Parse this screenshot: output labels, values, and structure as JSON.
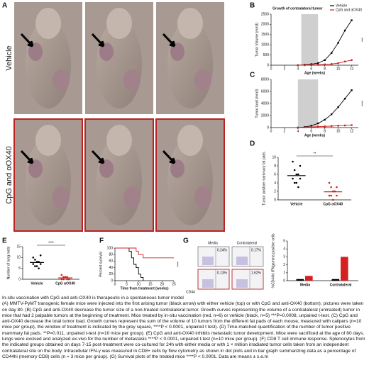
{
  "figure": {
    "panel_labels": [
      "A",
      "B",
      "C",
      "D",
      "E",
      "F",
      "G"
    ],
    "row_labels": [
      "Vehicle",
      "CpG and αOX40"
    ]
  },
  "flow": {
    "columns": [
      "Media",
      "Contralateral"
    ],
    "percentages": [
      "0.24%",
      "0.17%",
      "0.13%",
      "1.62%"
    ],
    "axis_label": "CD44"
  },
  "chart_data": [
    {
      "type": "line",
      "title": "Growth of contralateral tumor",
      "y_label": "Tumor Volume (mm3)",
      "x_label": "Age (weeks)",
      "x": [
        4,
        5,
        6,
        7,
        8,
        9,
        10,
        11,
        12
      ],
      "xlim": [
        0,
        13
      ],
      "xticks": [
        0,
        2,
        4,
        6,
        8,
        10,
        12
      ],
      "ylim": [
        0,
        2500
      ],
      "yticks": [
        0,
        500,
        1000,
        1500,
        2000,
        2500
      ],
      "shade": [
        4.5,
        7
      ],
      "annotation": "***",
      "legend": "upper right",
      "series": [
        {
          "name": "Vehicle",
          "color": "#000000",
          "values": [
            0,
            20,
            50,
            100,
            250,
            600,
            1100,
            1700,
            2200
          ]
        },
        {
          "name": "CpG and αOX40",
          "color": "#d62020",
          "values": [
            0,
            0,
            10,
            20,
            40,
            60,
            100,
            180,
            250
          ]
        }
      ]
    },
    {
      "type": "line",
      "y_label": "Tumor load (mm3)",
      "x_label": "Age (weeks)",
      "x": [
        4,
        5,
        6,
        7,
        8,
        9,
        10,
        11,
        12
      ],
      "xlim": [
        0,
        13
      ],
      "xticks": [
        0,
        2,
        4,
        6,
        8,
        10,
        12
      ],
      "ylim": [
        0,
        8000
      ],
      "yticks": [
        0,
        2000,
        4000,
        6000,
        8000
      ],
      "shade": [
        4,
        7
      ],
      "annotation": "****",
      "series": [
        {
          "color": "#000000",
          "values": [
            0,
            100,
            300,
            700,
            1300,
            2200,
            3400,
            4800,
            6200
          ]
        },
        {
          "color": "#d62020",
          "values": [
            0,
            50,
            100,
            150,
            200,
            250,
            300,
            350,
            400
          ]
        }
      ]
    },
    {
      "type": "strip",
      "y_label": "Tumor positive mammary fat pads",
      "categories": [
        "Vehicle",
        "CpG αOX40"
      ],
      "ylim": [
        0,
        10
      ],
      "yticks": [
        0,
        2,
        4,
        6,
        8,
        10
      ],
      "annotation": "**",
      "colors": [
        "#000000",
        "#d62020"
      ],
      "points": [
        [
          9,
          7,
          6,
          6,
          5,
          5,
          4,
          4,
          3,
          8
        ],
        [
          4,
          3,
          2,
          2,
          1,
          1,
          1,
          0,
          2,
          3
        ]
      ],
      "means": [
        5.7,
        1.9
      ]
    },
    {
      "type": "strip",
      "y_label": "Number of lung mets",
      "categories": [
        "Vehicle",
        "CpG αOX40"
      ],
      "ylim": [
        0,
        15
      ],
      "yticks": [
        0,
        5,
        10,
        15
      ],
      "annotation": "****",
      "colors": [
        "#000000",
        "#d62020"
      ],
      "points": [
        [
          10,
          9,
          8,
          8,
          7,
          7,
          6,
          6,
          5,
          11
        ],
        [
          2,
          1,
          1,
          1,
          0,
          0,
          0,
          1,
          0,
          0
        ]
      ],
      "means": [
        7.7,
        0.6
      ]
    },
    {
      "type": "step",
      "y_label": "Percent survival",
      "x_label": "Time from treatment (weeks)",
      "xlim": [
        0,
        25
      ],
      "xticks": [
        0,
        5,
        10,
        15,
        20,
        25
      ],
      "ylim": [
        0,
        100
      ],
      "yticks": [
        0,
        20,
        40,
        60,
        80,
        100
      ],
      "annotation": "****",
      "series": [
        {
          "color": "#000000",
          "x": [
            0,
            6,
            7,
            8,
            9,
            10,
            11,
            12
          ],
          "values": [
            100,
            90,
            70,
            50,
            40,
            20,
            10,
            0
          ]
        },
        {
          "color": "#d62020",
          "x": [
            0,
            9,
            10,
            12,
            25
          ],
          "values": [
            100,
            90,
            80,
            70,
            70
          ]
        }
      ]
    },
    {
      "type": "bar",
      "y_label": "%CD44hi IFNgamma positive cells",
      "categories": [
        "Media",
        "Contralateral"
      ],
      "ylim": [
        0,
        5
      ],
      "yticks": [
        0,
        1,
        2,
        3,
        4,
        5
      ],
      "series": [
        {
          "color": "#000000",
          "values": [
            0.2,
            0.2
          ]
        },
        {
          "color": "#d62020",
          "values": [
            0.6,
            3.0
          ]
        }
      ]
    }
  ],
  "caption": {
    "title": "In-situ vaccination with CpG and anti-OX40 is therapeutic in a spontaneous tumor model",
    "text": "(A) MMTV-PyMT transgenic female mice were injected into the first arising tumor (black arrow) with either vehicle  (top) or with CpG and anti-OX40 (bottom); pictures were taken on day 80. (B) CpG and anti-OX40 decrease the tumor size of a non-treated contralateral tumor. Growth curves representing the volume of a contralateral (untreated) tumor in mice that had 2 palpable tumors at the beginning of treatment. Mice treated by in-situ vaccination (red, n=6) or vehicle (black, n=5) ***P=0.0008, unpaired t-test. (C) CpG and anti-OX40 decrease the total tumor load. Growth curves represent the sum of the volume of 10 tumors from the different fat pads of each mouse, measured with calipers (n=10 mice per group), the window of treatment is indicated by the grey square, ****P < 0.0001, unpaired t test). (D) Time-matched quantification of the number of tumor positive mammary fat pads. **P=0.011, unpaired t-test (n=10 mice per group). (E) CpG and anti-OX40 inhibits metastatic tumor development. Mice were sacrificed at the age of 80 days, lungs were excised and analyzed ex-vivo for the number of metastasis ****P < 0.0001, unpaired t-test (n=10 mice per group). (F) CD8 T cell immune response. Splenocytes from the indicated groups obtained on days 7-15 post-treatment were co-cultured for 24h with either media or with 1 × million irradiated tumor cells taken from an independent contralateral site on the body. Intracellular IFN-γ was measured in CD8+ cells by flow cytometry as shown in dot plots and in bar graph summarizing data as a percentage of CD44hi (memory CD8) cells (n = 3 mice per group). (G) Survival plots of the treated mice ****P < 0.0001. Data are means ± s.e.m"
  }
}
